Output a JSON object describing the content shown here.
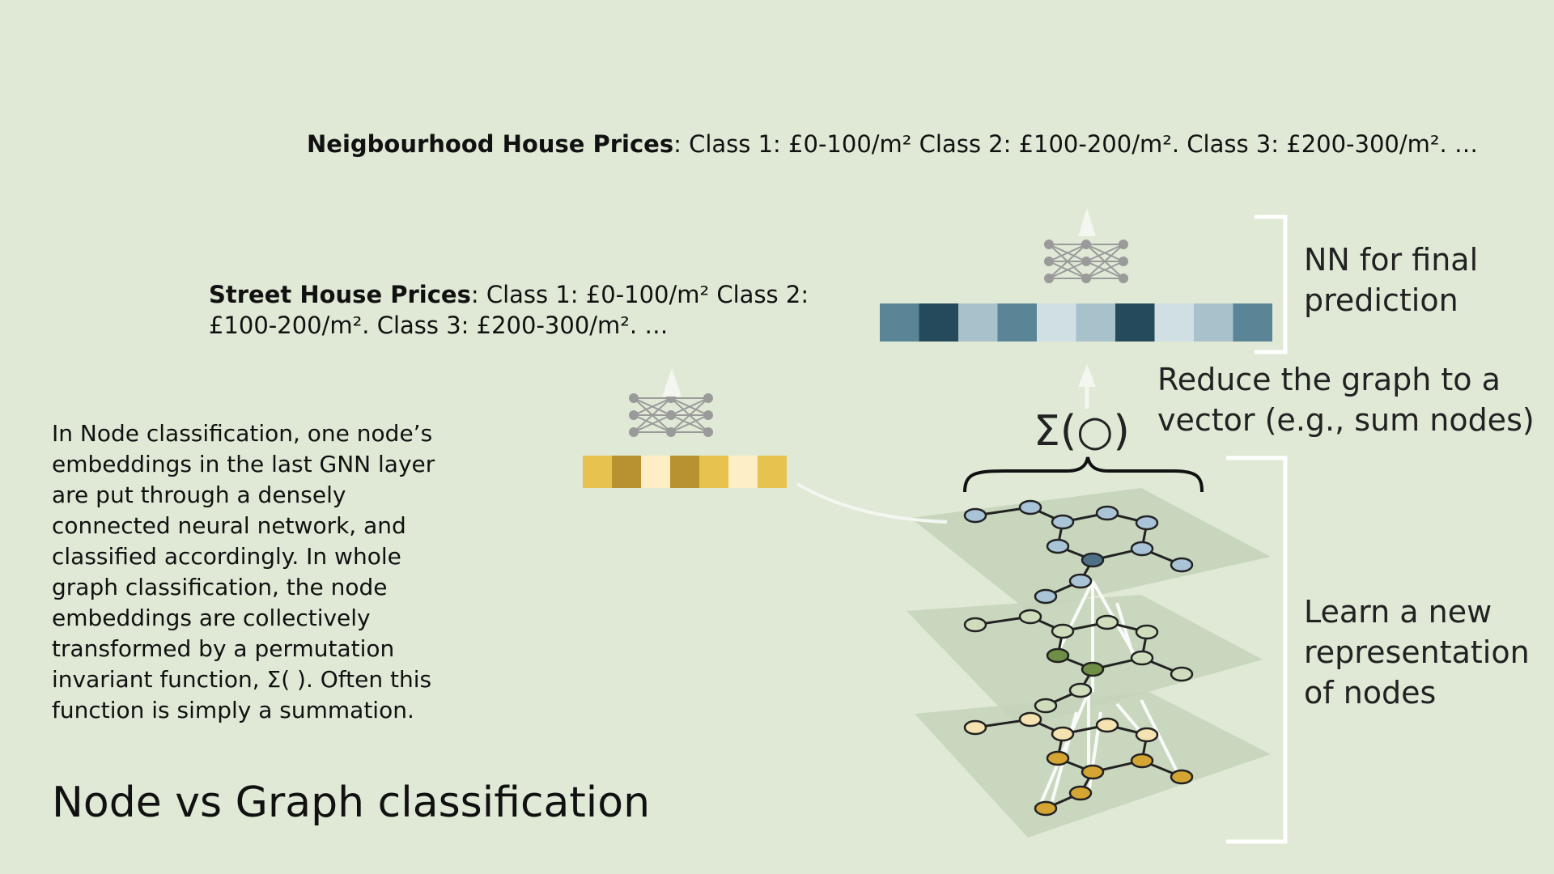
{
  "neighbourhood": {
    "heading": "Neigbourhood House Prices",
    "rest": ": Class 1: £0-100/m² Class 2: £100-200/m². Class 3: £200-300/m². …"
  },
  "street": {
    "heading": "Street House Prices",
    "line1_rest": ": Class 1: £0-100/m² Class 2:",
    "line2": "£100-200/m². Class 3: £200-300/m². …"
  },
  "description": "In Node classification, one node’s embeddings in the last GNN layer are put through a densely connected neural network, and classified accordingly. In whole graph classification, the node embeddings are collectively transformed by a permutation invariant function, Σ( ). Often this function is simply a summation.",
  "title": "Node vs Graph classification",
  "labels": {
    "nn_final": "NN for final prediction",
    "reduce": "Reduce the graph to a vector (e.g., sum nodes)",
    "learn": "Learn a new representation of nodes",
    "sigma": "Σ(○)"
  },
  "colors": {
    "background": "#dfe9d6",
    "node_embedding": [
      "#e8c24e",
      "#b89230",
      "#fdeec6",
      "#b89230",
      "#e8c24e",
      "#fdeec6",
      "#e8c24e"
    ],
    "graph_embedding": [
      "#5a8597",
      "#244a5b",
      "#a8c2cb",
      "#5a8597",
      "#d0dfe3",
      "#a8c2cb",
      "#244a5b",
      "#d0dfe3",
      "#a8c2cb",
      "#5a8597"
    ],
    "top_layer_node": "#a9c4d6",
    "mid_layer_node": "#d0ddbc",
    "bottom_layer_node": "#f4e3b0"
  }
}
